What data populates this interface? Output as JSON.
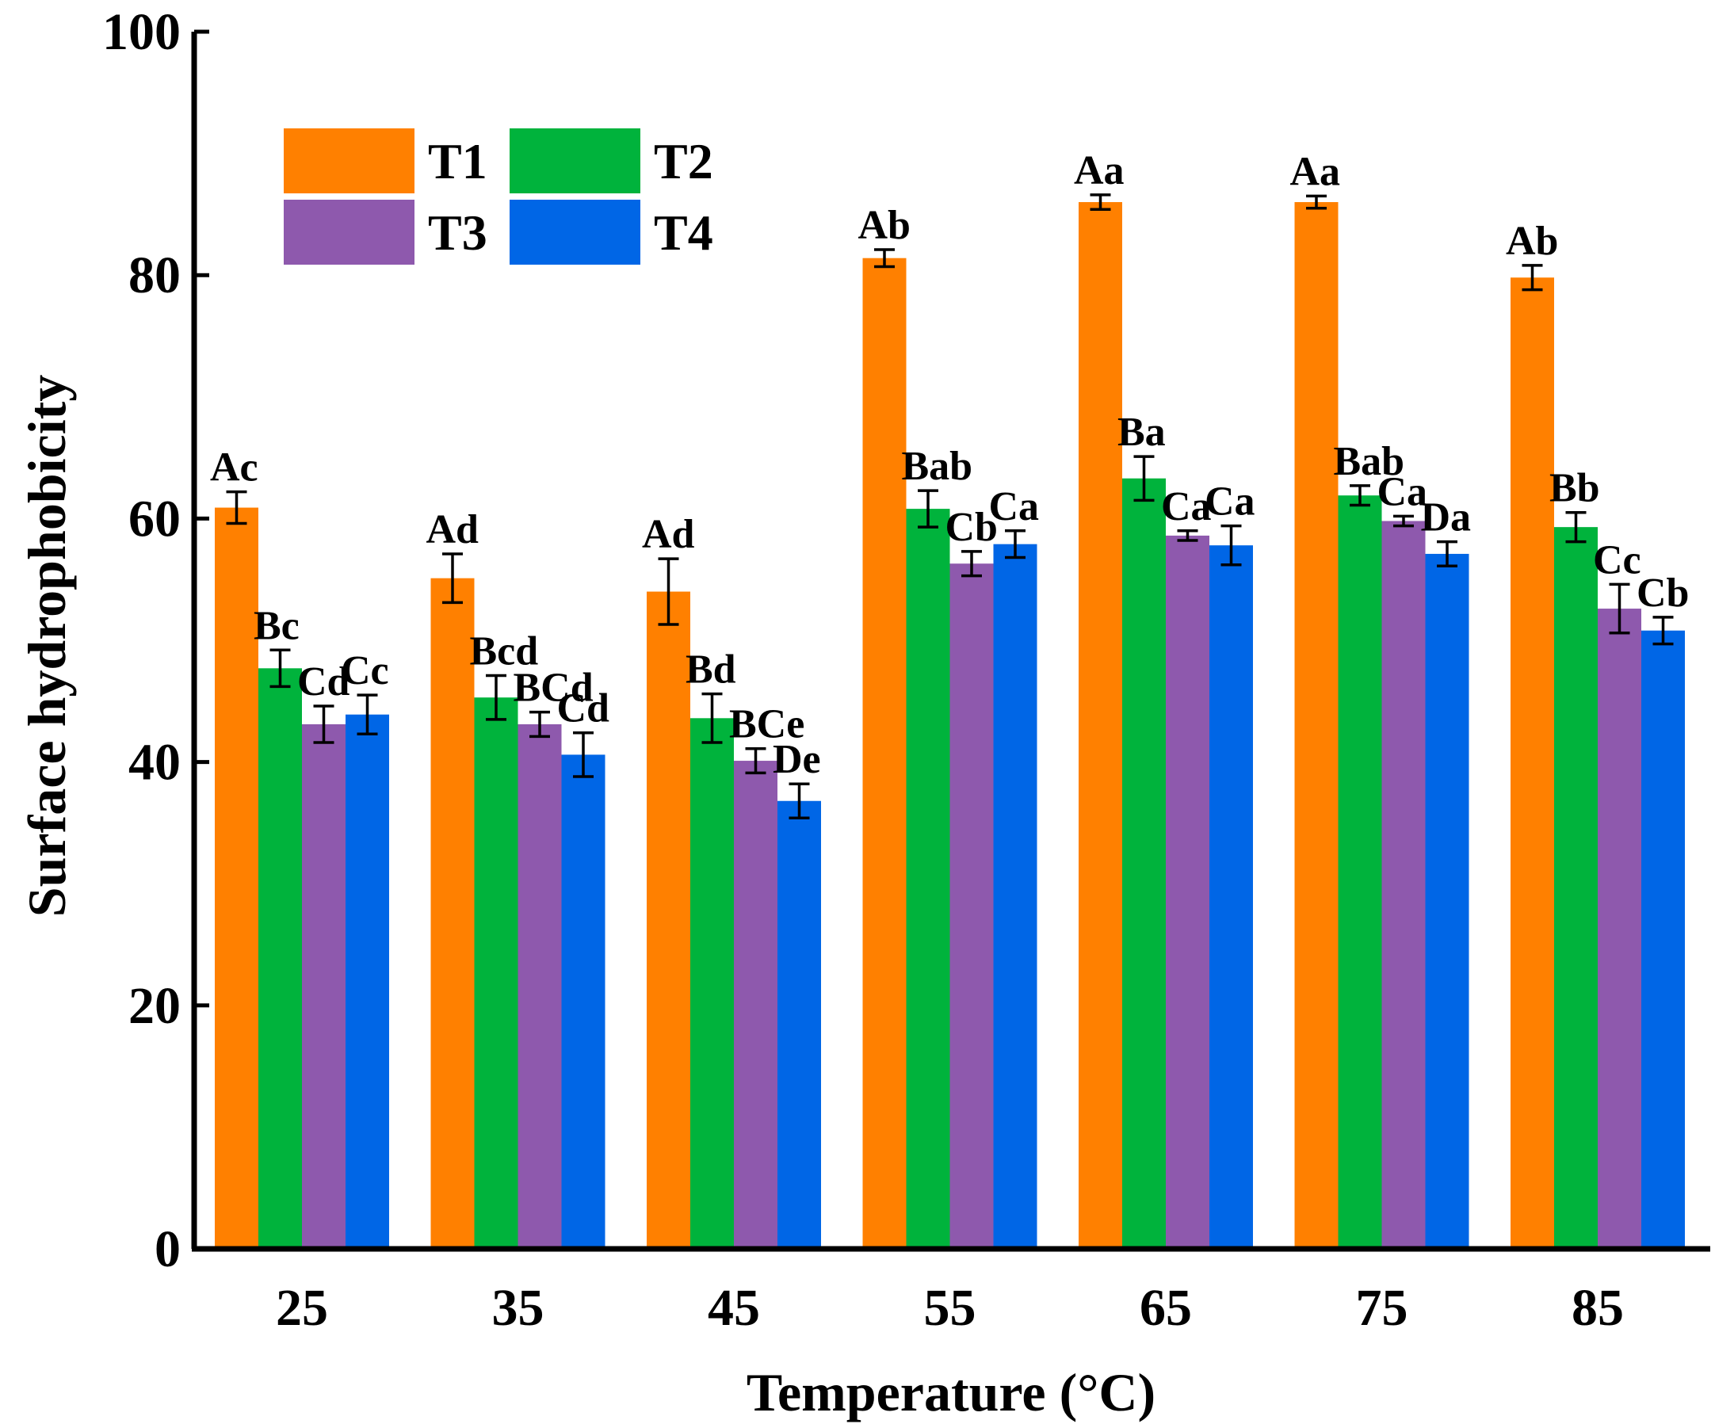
{
  "chart_data": {
    "type": "bar",
    "title": "",
    "xlabel": "Temperature (°C)",
    "ylabel": "Surface hydrophobicity",
    "ylim": [
      0,
      100
    ],
    "yticks": [
      "0",
      "20",
      "40",
      "60",
      "80",
      "100"
    ],
    "categories": [
      "25",
      "35",
      "45",
      "55",
      "65",
      "75",
      "85"
    ],
    "legend_position": "top-left",
    "series": [
      {
        "name": "T1",
        "color": "#FF8000",
        "values": [
          60.9,
          55.1,
          54.0,
          81.4,
          86.0,
          86.0,
          79.8
        ],
        "errors": [
          1.3,
          2.0,
          2.7,
          0.7,
          0.6,
          0.5,
          1.0
        ],
        "labels": [
          "Ac",
          "Ad",
          "Ad",
          "Ab",
          "Aa",
          "Aa",
          "Ab"
        ]
      },
      {
        "name": "T2",
        "color": "#00B33C",
        "values": [
          47.7,
          45.3,
          43.6,
          60.8,
          63.3,
          61.9,
          59.3
        ],
        "errors": [
          1.5,
          1.8,
          2.0,
          1.5,
          1.8,
          0.8,
          1.2
        ],
        "labels": [
          "Bc",
          "Bcd",
          "Bd",
          "Bab",
          "Ba",
          "Bab",
          "Bb"
        ]
      },
      {
        "name": "T3",
        "color": "#8E59AD",
        "values": [
          43.1,
          43.1,
          40.1,
          56.3,
          58.6,
          59.8,
          52.6
        ],
        "errors": [
          1.5,
          1.0,
          1.0,
          1.0,
          0.4,
          0.4,
          2.0
        ],
        "labels": [
          "Cd",
          "BCd",
          "BCe",
          "Cb",
          "Ca",
          "Ca",
          "Cc"
        ]
      },
      {
        "name": "T4",
        "color": "#0066E6",
        "values": [
          43.9,
          40.6,
          36.8,
          57.9,
          57.8,
          57.1,
          50.8
        ],
        "errors": [
          1.6,
          1.8,
          1.4,
          1.1,
          1.6,
          1.0,
          1.1
        ],
        "labels": [
          "Cc",
          "Cd",
          "De",
          "Ca",
          "Ca",
          "Da",
          "Cb"
        ]
      }
    ]
  }
}
